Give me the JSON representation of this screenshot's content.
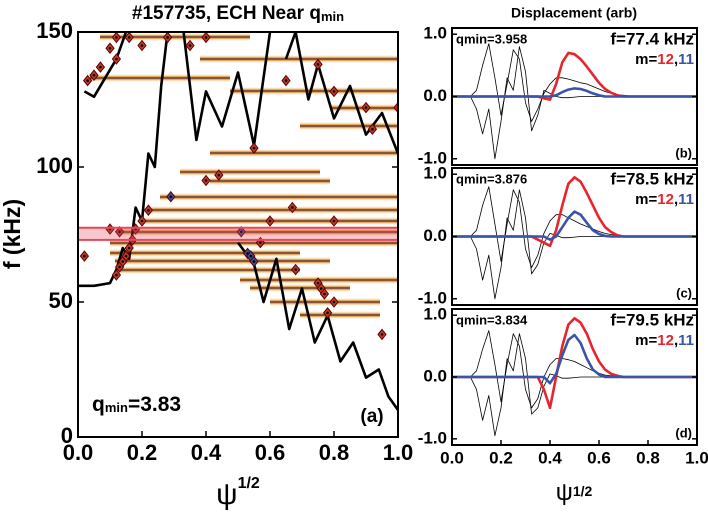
{
  "chart_data": [
    {
      "type": "line",
      "title": "#157735, ECH Near q",
      "title_sub": "min",
      "xlabel": "ψ",
      "xlabel_sup": "1/2",
      "ylabel": "f (kHz)",
      "annotation": "q",
      "annotation_sub": "min",
      "annotation_value": "=3.83",
      "panel_label": "(a)",
      "xlim": [
        0,
        1
      ],
      "ylim": [
        0,
        150
      ],
      "xticks": [
        {
          "value": 0,
          "label": "0.0"
        },
        {
          "value": 0.2,
          "label": "0.2"
        },
        {
          "value": 0.4,
          "label": "0.4"
        },
        {
          "value": 0.6,
          "label": "0.6"
        },
        {
          "value": 0.8,
          "label": "0.8"
        },
        {
          "value": 1,
          "label": "1.0"
        }
      ],
      "yticks": [
        0,
        50,
        100,
        150
      ],
      "highlight": [
        73,
        77.5
      ],
      "highlight_color": "#e8465a",
      "series": [
        {
          "type": "line",
          "color": "#000000",
          "x": [
            0,
            0.05,
            0.1,
            0.12,
            0.14,
            0.16,
            0.18,
            0.2,
            0.22,
            0.24,
            0.26,
            0.28,
            0.3,
            0.5,
            0.55,
            0.58,
            0.62,
            0.66,
            0.7,
            0.74,
            0.78,
            0.82,
            0.86,
            0.9,
            0.94,
            0.97,
            1.0
          ],
          "values": [
            56,
            56,
            57,
            62,
            70,
            66,
            85,
            80,
            105,
            100,
            130,
            150,
            null,
            72,
            64,
            50,
            66,
            40,
            55,
            35,
            45,
            28,
            35,
            22,
            25,
            15,
            10
          ]
        },
        {
          "type": "line",
          "color": "#000000",
          "x": [
            0.02,
            0.05,
            0.08,
            0.12,
            0.15,
            0.2,
            0.33,
            0.37,
            0.4,
            0.45,
            0.5,
            0.55,
            0.6,
            0.62,
            0.65,
            0.68,
            0.72,
            0.75,
            0.8,
            0.85,
            0.9,
            0.95,
            1.0
          ],
          "values": [
            128,
            126,
            132,
            140,
            150,
            null,
            150,
            110,
            128,
            115,
            135,
            108,
            150,
            null,
            140,
            150,
            125,
            138,
            118,
            130,
            112,
            120,
            105
          ]
        },
        {
          "type": "scatter",
          "color": "#c0392b",
          "x": [
            0.02,
            0.03,
            0.05,
            0.07,
            0.1,
            0.12,
            0.12,
            0.16,
            0.2,
            0.28,
            0.35,
            0.4,
            0.12,
            0.13,
            0.14,
            0.15,
            0.16,
            0.17,
            0.1,
            0.13,
            0.18,
            0.2,
            0.22,
            0.4,
            0.44,
            0.55,
            0.65,
            0.75,
            0.8,
            0.9,
            1.0,
            0.92,
            0.67,
            0.8,
            0.6,
            0.68,
            0.75,
            0.76,
            0.77,
            0.8,
            0.78,
            0.95,
            0.57
          ],
          "values": [
            67,
            132,
            134,
            137,
            144,
            140,
            148,
            148,
            145,
            148,
            145,
            148,
            60,
            63,
            65,
            67,
            70,
            73,
            77,
            76,
            77,
            80,
            84,
            95,
            97,
            107,
            132,
            138,
            128,
            122,
            122,
            114,
            85,
            80,
            80,
            62,
            57,
            55,
            53,
            50,
            46,
            38,
            72
          ]
        },
        {
          "type": "scatter",
          "color": "#3a4fa0",
          "x": [
            0.29,
            0.51,
            0.53,
            0.54,
            0.55
          ],
          "values": [
            89,
            76,
            68,
            67,
            65
          ]
        }
      ]
    },
    {
      "type": "line",
      "title": "Displacement (arb)",
      "qmin": "qmin=3.958",
      "freq": "f=77.4 kHz",
      "legend_prefix": "m=",
      "legend_sep": ",",
      "panel_label": "(b)",
      "xlim": [
        0,
        1
      ],
      "ylim": [
        -1.1,
        1.1
      ],
      "yticks": [
        {
          "value": -1,
          "label": "-1.0"
        },
        {
          "value": 0,
          "label": "0.0"
        },
        {
          "value": 1,
          "label": "1.0"
        }
      ],
      "x": [
        0,
        0.025,
        0.05,
        0.075,
        0.1,
        0.125,
        0.15,
        0.175,
        0.2,
        0.225,
        0.25,
        0.275,
        0.3,
        0.325,
        0.35,
        0.375,
        0.4,
        0.425,
        0.45,
        0.475,
        0.5,
        0.525,
        0.55,
        0.575,
        0.6,
        0.625,
        0.65,
        0.675,
        0.7,
        0.725,
        0.75,
        0.775,
        0.8,
        0.825,
        0.85,
        0.875,
        0.9,
        0.925,
        0.95,
        0.975,
        1.0
      ],
      "series": [
        {
          "color": "#000000",
          "values": [
            0,
            0,
            0,
            0,
            0.1,
            0.5,
            0.85,
            0.3,
            -0.3,
            0.2,
            0.75,
            0.6,
            -0.1,
            -0.4,
            -0.2,
            0.05,
            0.2,
            0.3,
            0.3,
            0.28,
            0.25,
            0.22,
            0.2,
            0.16,
            0.12,
            0.08,
            0.05,
            0.03,
            0.02,
            0.01,
            0,
            0,
            0,
            0,
            0,
            0,
            0,
            0,
            0,
            0,
            0
          ]
        },
        {
          "color": "#000000",
          "values": [
            0,
            0,
            0,
            0,
            -0.2,
            -0.6,
            -0.2,
            -1.0,
            -0.4,
            0.3,
            0.1,
            0.8,
            0.4,
            -0.55,
            -0.3,
            0.1,
            0.05,
            0,
            -0.02,
            -0.02,
            -0.01,
            0,
            0,
            0,
            0,
            0,
            0,
            0,
            0,
            0,
            0,
            0,
            0,
            0,
            0,
            0,
            0,
            0,
            0,
            0,
            0
          ]
        },
        {
          "name": "12",
          "color": "#e8252e",
          "values": [
            0,
            0,
            0,
            0,
            0,
            0,
            0,
            0,
            0,
            0,
            0,
            0,
            0,
            0,
            0,
            -0.03,
            -0.05,
            0.2,
            0.55,
            0.7,
            0.68,
            0.6,
            0.48,
            0.35,
            0.22,
            0.12,
            0.06,
            0.02,
            0,
            0,
            0,
            0,
            0,
            0,
            0,
            0,
            0,
            0,
            0,
            0,
            0
          ]
        },
        {
          "name": "11",
          "color": "#3a55a8",
          "values": [
            0,
            0,
            0,
            0,
            0,
            0,
            0,
            0,
            0,
            0,
            0,
            0,
            0,
            0,
            0,
            0,
            0,
            0.02,
            0.07,
            0.11,
            0.13,
            0.12,
            0.09,
            0.05,
            0.02,
            0,
            0,
            0,
            0,
            0,
            0,
            0,
            0,
            0,
            0,
            0,
            0,
            0,
            0,
            0,
            0
          ]
        }
      ]
    },
    {
      "type": "line",
      "qmin": "qmin=3.876",
      "freq": "f=78.5 kHz",
      "legend_prefix": "m=",
      "legend_sep": ",",
      "panel_label": "(c)",
      "xlim": [
        0,
        1
      ],
      "ylim": [
        -1.1,
        1.1
      ],
      "yticks": [
        {
          "value": -1,
          "label": "-1.0"
        },
        {
          "value": 0,
          "label": "0.0"
        },
        {
          "value": 1,
          "label": "1.0"
        }
      ],
      "x": [
        0,
        0.025,
        0.05,
        0.075,
        0.1,
        0.125,
        0.15,
        0.175,
        0.2,
        0.225,
        0.25,
        0.275,
        0.3,
        0.325,
        0.35,
        0.375,
        0.4,
        0.425,
        0.45,
        0.475,
        0.5,
        0.525,
        0.55,
        0.575,
        0.6,
        0.625,
        0.65,
        0.675,
        0.7,
        0.725,
        0.75,
        0.775,
        0.8,
        0.825,
        0.85,
        0.875,
        0.9,
        0.925,
        0.95,
        0.975,
        1.0
      ],
      "series": [
        {
          "color": "#000000",
          "values": [
            0,
            0,
            0,
            0,
            0.1,
            0.5,
            0.8,
            0.2,
            -0.4,
            0.2,
            0.75,
            0.55,
            -0.2,
            -0.5,
            -0.3,
            0.05,
            0.25,
            0.35,
            0.35,
            0.3,
            0.25,
            0.2,
            0.16,
            0.12,
            0.08,
            0.05,
            0.03,
            0.02,
            0.01,
            0,
            0,
            0,
            0,
            0,
            0,
            0,
            0,
            0,
            0,
            0,
            0
          ]
        },
        {
          "color": "#000000",
          "values": [
            0,
            0,
            0,
            0,
            -0.2,
            -0.7,
            -0.3,
            -1.0,
            -0.5,
            0.3,
            0.1,
            0.75,
            0.3,
            -0.6,
            -0.45,
            -0.1,
            0.05,
            0.02,
            -0.02,
            -0.02,
            -0.01,
            0,
            0,
            0,
            0,
            0,
            0,
            0,
            0,
            0,
            0,
            0,
            0,
            0,
            0,
            0,
            0,
            0,
            0,
            0,
            0
          ]
        },
        {
          "name": "12",
          "color": "#e8252e",
          "values": [
            0,
            0,
            0,
            0,
            0,
            0,
            0,
            0,
            0,
            0,
            0,
            0,
            0,
            0,
            -0.05,
            -0.1,
            -0.15,
            0.1,
            0.5,
            0.85,
            0.95,
            0.88,
            0.7,
            0.5,
            0.3,
            0.15,
            0.07,
            0.02,
            0,
            0,
            0,
            0,
            0,
            0,
            0,
            0,
            0,
            0,
            0,
            0,
            0
          ]
        },
        {
          "name": "11",
          "color": "#3a55a8",
          "values": [
            0,
            0,
            0,
            0,
            0,
            0,
            0,
            0,
            0,
            0,
            0,
            0,
            0,
            0,
            0,
            0,
            -0.05,
            0,
            0.15,
            0.3,
            0.4,
            0.35,
            0.22,
            0.1,
            0.04,
            0.01,
            0,
            0,
            0,
            0,
            0,
            0,
            0,
            0,
            0,
            0,
            0,
            0,
            0,
            0,
            0
          ]
        }
      ]
    },
    {
      "type": "line",
      "qmin": "qmin=3.834",
      "freq": "f=79.5 kHz",
      "legend_prefix": "m=",
      "legend_sep": ",",
      "panel_label": "(d)",
      "xlabel": "ψ",
      "xlabel_sub": "1/2",
      "xlim": [
        0,
        1
      ],
      "ylim": [
        -1.1,
        1.1
      ],
      "xticks": [
        {
          "value": 0,
          "label": "0.0"
        },
        {
          "value": 0.2,
          "label": "0.2"
        },
        {
          "value": 0.4,
          "label": "0.4"
        },
        {
          "value": 0.6,
          "label": "0.6"
        },
        {
          "value": 0.8,
          "label": "0.8"
        },
        {
          "value": 1,
          "label": "1.0"
        }
      ],
      "yticks": [
        {
          "value": -1,
          "label": "-1.0"
        },
        {
          "value": 0,
          "label": "0.0"
        },
        {
          "value": 1,
          "label": "1.0"
        }
      ],
      "x": [
        0,
        0.025,
        0.05,
        0.075,
        0.1,
        0.125,
        0.15,
        0.175,
        0.2,
        0.225,
        0.25,
        0.275,
        0.3,
        0.325,
        0.35,
        0.375,
        0.4,
        0.425,
        0.45,
        0.475,
        0.5,
        0.525,
        0.55,
        0.575,
        0.6,
        0.625,
        0.65,
        0.675,
        0.7,
        0.725,
        0.75,
        0.775,
        0.8,
        0.825,
        0.85,
        0.875,
        0.9,
        0.925,
        0.95,
        0.975,
        1.0
      ],
      "series": [
        {
          "color": "#000000",
          "values": [
            0,
            0,
            0,
            0,
            0.1,
            0.45,
            0.75,
            0.2,
            -0.4,
            0.2,
            0.7,
            0.5,
            -0.2,
            -0.5,
            -0.35,
            0,
            0.2,
            0.3,
            0.3,
            0.28,
            0.25,
            0.2,
            0.15,
            0.1,
            0.06,
            0.03,
            0.02,
            0.01,
            0,
            0,
            0,
            0,
            0,
            0,
            0,
            0,
            0,
            0,
            0,
            0,
            0
          ]
        },
        {
          "color": "#000000",
          "values": [
            0,
            0,
            0,
            0,
            -0.2,
            -0.7,
            -0.3,
            -0.95,
            -0.5,
            0.3,
            0.1,
            0.7,
            0.3,
            -0.6,
            -0.5,
            -0.15,
            0.05,
            0.02,
            -0.02,
            -0.02,
            -0.01,
            0,
            0,
            0,
            0,
            0,
            0,
            0,
            0,
            0,
            0,
            0,
            0,
            0,
            0,
            0,
            0,
            0,
            0,
            0,
            0
          ]
        },
        {
          "name": "12",
          "color": "#e8252e",
          "values": [
            0,
            0,
            0,
            0,
            0,
            0,
            0,
            0,
            0,
            0,
            0,
            0,
            0,
            0,
            0,
            -0.2,
            -0.5,
            0,
            0.5,
            0.85,
            0.95,
            0.88,
            0.7,
            0.45,
            0.25,
            0.12,
            0.05,
            0.02,
            0,
            0,
            0,
            0,
            0,
            0,
            0,
            0,
            0,
            0,
            0,
            0,
            0
          ]
        },
        {
          "name": "11",
          "color": "#3a55a8",
          "values": [
            0,
            0,
            0,
            0,
            0,
            0,
            0,
            0,
            0,
            0,
            0,
            0,
            0,
            0,
            0,
            0,
            -0.1,
            0.05,
            0.35,
            0.6,
            0.68,
            0.55,
            0.3,
            0.12,
            0.04,
            0,
            0,
            0,
            0,
            0,
            0,
            0,
            0,
            0,
            0,
            0,
            0,
            0,
            0,
            0,
            0
          ]
        }
      ]
    }
  ]
}
